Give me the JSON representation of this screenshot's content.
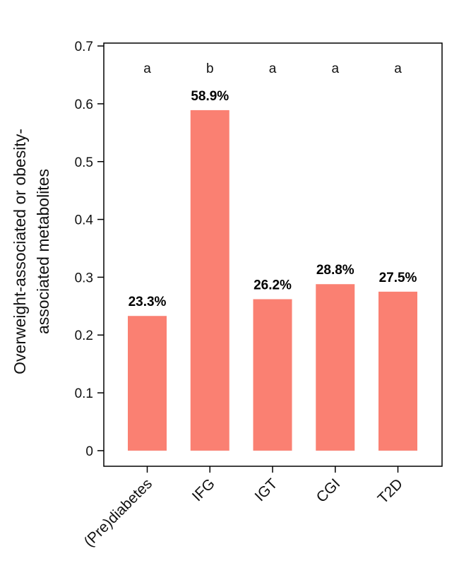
{
  "chart_data": {
    "type": "bar",
    "categories": [
      "(Pre)diabetes",
      "IFG",
      "IGT",
      "CGI",
      "T2D"
    ],
    "values": [
      0.233,
      0.589,
      0.262,
      0.288,
      0.275
    ],
    "data_labels": [
      "23.3%",
      "58.9%",
      "26.2%",
      "28.8%",
      "27.5%"
    ],
    "significance_letters": [
      "a",
      "b",
      "a",
      "a",
      "a"
    ],
    "title": "",
    "xlabel": "",
    "ylabel_lines": [
      "Overweight-associated or obesity-",
      "associated metabolites"
    ],
    "ylim": [
      -0.027,
      0.705
    ],
    "yticks": [
      0,
      0.1,
      0.2,
      0.3,
      0.4,
      0.5,
      0.6,
      0.7
    ],
    "ytick_labels": [
      "0",
      "0.1",
      "0.2",
      "0.3",
      "0.4",
      "0.5",
      "0.6",
      "0.7"
    ],
    "bar_color": "#fa8072",
    "grid": false,
    "legend": "none"
  }
}
